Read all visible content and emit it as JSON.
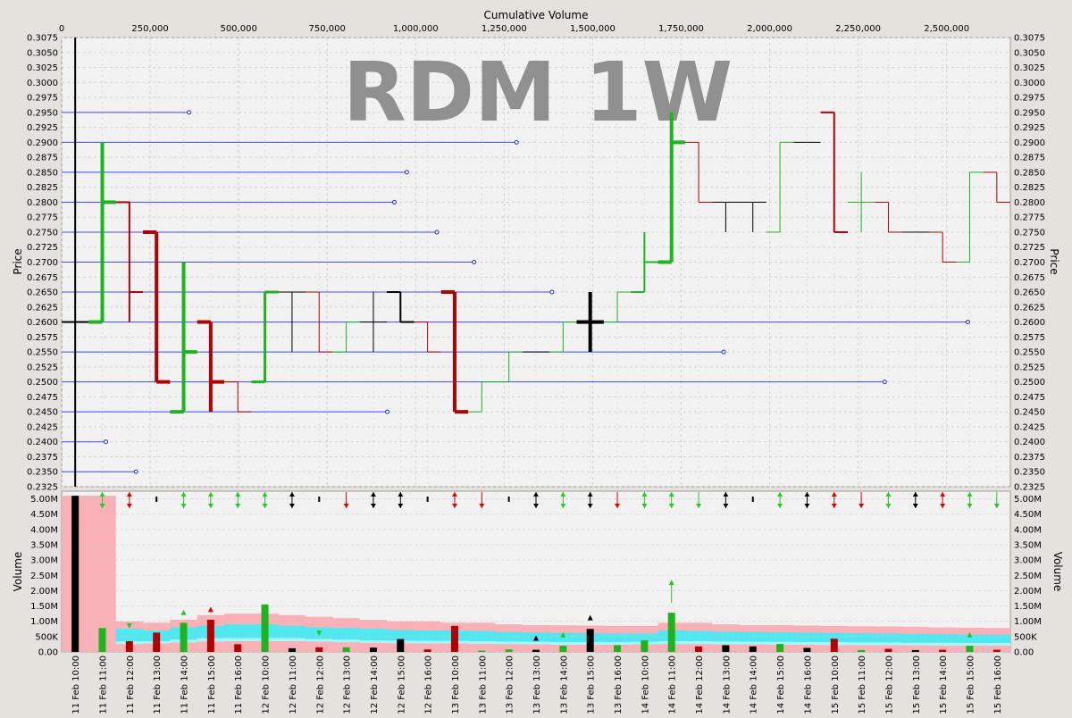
{
  "chart_data": [
    {
      "type": "bar",
      "subtype": "ohlc-with-volume-at-price",
      "title": "RDM 1W",
      "top_axis_label": "Cumulative Volume",
      "ylabel": "Price",
      "ylim": [
        0.2325,
        0.3075
      ],
      "price_ticks": [
        "0.2325",
        "0.2350",
        "0.2375",
        "0.2400",
        "0.2425",
        "0.2450",
        "0.2475",
        "0.2500",
        "0.2525",
        "0.2550",
        "0.2575",
        "0.2600",
        "0.2625",
        "0.2650",
        "0.2675",
        "0.2700",
        "0.2725",
        "0.2750",
        "0.2775",
        "0.2800",
        "0.2825",
        "0.2850",
        "0.2875",
        "0.2900",
        "0.2925",
        "0.2950",
        "0.2975",
        "0.3000",
        "0.3025",
        "0.3050",
        "0.3075"
      ],
      "cum_volume_ticks": [
        "0",
        "250,000",
        "500,000",
        "750,000",
        "1,000,000",
        "1,250,000",
        "1,500,000",
        "1,750,000",
        "2,000,000",
        "2,250,000",
        "2,500,000"
      ],
      "cum_volume_tick_values": [
        0,
        250000,
        500000,
        750000,
        1000000,
        1250000,
        1500000,
        1750000,
        2000000,
        2250000,
        2500000
      ],
      "cum_volume_range": [
        0,
        2680000
      ],
      "volume_at_price": [
        {
          "price": 0.295,
          "volume": 360000
        },
        {
          "price": 0.29,
          "volume": 1285000
        },
        {
          "price": 0.285,
          "volume": 975000
        },
        {
          "price": 0.28,
          "volume": 940000
        },
        {
          "price": 0.275,
          "volume": 1060000
        },
        {
          "price": 0.27,
          "volume": 1165000
        },
        {
          "price": 0.265,
          "volume": 1385000
        },
        {
          "price": 0.26,
          "volume": 2560000
        },
        {
          "price": 0.255,
          "volume": 1870000
        },
        {
          "price": 0.25,
          "volume": 2325000
        },
        {
          "price": 0.245,
          "volume": 920000
        },
        {
          "price": 0.24,
          "volume": 125000
        },
        {
          "price": 0.235,
          "volume": 210000
        }
      ],
      "bars": [
        {
          "label": "11 Feb 10:00",
          "open": 0.26,
          "high": 0.3075,
          "low": 0.2325,
          "close": 0.26,
          "color": "#000000",
          "volume": 5100000
        },
        {
          "label": "11 Feb 11:00",
          "open": 0.26,
          "high": 0.29,
          "low": 0.26,
          "close": 0.28,
          "color": "#1fb31f",
          "volume": 780000
        },
        {
          "label": "11 Feb 12:00",
          "open": 0.28,
          "high": 0.28,
          "low": 0.26,
          "close": 0.265,
          "color": "#b30000",
          "volume": 350000
        },
        {
          "label": "11 Feb 13:00",
          "open": 0.275,
          "high": 0.275,
          "low": 0.25,
          "close": 0.25,
          "color": "#b30000",
          "volume": 630000
        },
        {
          "label": "11 Feb 14:00",
          "open": 0.245,
          "high": 0.27,
          "low": 0.245,
          "close": 0.255,
          "color": "#1fb31f",
          "volume": 950000
        },
        {
          "label": "11 Feb 15:00",
          "open": 0.26,
          "high": 0.26,
          "low": 0.245,
          "close": 0.25,
          "color": "#b30000",
          "volume": 1050000
        },
        {
          "label": "11 Feb 16:00",
          "open": 0.25,
          "high": 0.25,
          "low": 0.245,
          "close": 0.245,
          "color": "#b30000",
          "volume": 250000
        },
        {
          "label": "12 Feb 10:00",
          "open": 0.25,
          "high": 0.265,
          "low": 0.25,
          "close": 0.265,
          "color": "#1fb31f",
          "volume": 1550000
        },
        {
          "label": "12 Feb 11:00",
          "open": 0.265,
          "high": 0.265,
          "low": 0.255,
          "close": 0.265,
          "color": "#000000",
          "volume": 120000
        },
        {
          "label": "12 Feb 12:00",
          "open": 0.265,
          "high": 0.265,
          "low": 0.255,
          "close": 0.255,
          "color": "#b30000",
          "volume": 150000
        },
        {
          "label": "12 Feb 13:00",
          "open": 0.255,
          "high": 0.26,
          "low": 0.255,
          "close": 0.26,
          "color": "#1fb31f",
          "volume": 150000
        },
        {
          "label": "12 Feb 14:00",
          "open": 0.26,
          "high": 0.265,
          "low": 0.255,
          "close": 0.26,
          "color": "#000000",
          "volume": 140000
        },
        {
          "label": "12 Feb 15:00",
          "open": 0.265,
          "high": 0.265,
          "low": 0.26,
          "close": 0.26,
          "color": "#000000",
          "volume": 420000
        },
        {
          "label": "12 Feb 16:00",
          "open": 0.26,
          "high": 0.26,
          "low": 0.255,
          "close": 0.255,
          "color": "#b30000",
          "volume": 80000
        },
        {
          "label": "13 Feb 10:00",
          "open": 0.265,
          "high": 0.265,
          "low": 0.245,
          "close": 0.245,
          "color": "#b30000",
          "volume": 850000
        },
        {
          "label": "13 Feb 11:00",
          "open": 0.245,
          "high": 0.25,
          "low": 0.245,
          "close": 0.25,
          "color": "#1fb31f",
          "volume": 40000
        },
        {
          "label": "13 Feb 12:00",
          "open": 0.25,
          "high": 0.255,
          "low": 0.25,
          "close": 0.255,
          "color": "#1fb31f",
          "volume": 80000
        },
        {
          "label": "13 Feb 13:00",
          "open": 0.255,
          "high": 0.255,
          "low": 0.255,
          "close": 0.255,
          "color": "#000000",
          "volume": 70000
        },
        {
          "label": "13 Feb 14:00",
          "open": 0.255,
          "high": 0.26,
          "low": 0.255,
          "close": 0.26,
          "color": "#1fb31f",
          "volume": 200000
        },
        {
          "label": "13 Feb 15:00",
          "open": 0.26,
          "high": 0.265,
          "low": 0.255,
          "close": 0.26,
          "color": "#000000",
          "volume": 750000
        },
        {
          "label": "13 Feb 16:00",
          "open": 0.26,
          "high": 0.265,
          "low": 0.26,
          "close": 0.265,
          "color": "#1fb31f",
          "volume": 220000
        },
        {
          "label": "14 Feb 10:00",
          "open": 0.265,
          "high": 0.275,
          "low": 0.265,
          "close": 0.27,
          "color": "#1fb31f",
          "volume": 380000
        },
        {
          "label": "14 Feb 11:00",
          "open": 0.27,
          "high": 0.295,
          "low": 0.27,
          "close": 0.29,
          "color": "#1fb31f",
          "volume": 1280000
        },
        {
          "label": "14 Feb 12:00",
          "open": 0.29,
          "high": 0.29,
          "low": 0.28,
          "close": 0.28,
          "color": "#b30000",
          "volume": 180000
        },
        {
          "label": "14 Feb 13:00",
          "open": 0.28,
          "high": 0.28,
          "low": 0.275,
          "close": 0.28,
          "color": "#000000",
          "volume": 220000
        },
        {
          "label": "14 Feb 14:00",
          "open": 0.28,
          "high": 0.28,
          "low": 0.275,
          "close": 0.28,
          "color": "#000000",
          "volume": 180000
        },
        {
          "label": "14 Feb 15:00",
          "open": 0.275,
          "high": 0.29,
          "low": 0.275,
          "close": 0.29,
          "color": "#1fb31f",
          "volume": 260000
        },
        {
          "label": "14 Feb 16:00",
          "open": 0.29,
          "high": 0.29,
          "low": 0.29,
          "close": 0.29,
          "color": "#000000",
          "volume": 130000
        },
        {
          "label": "15 Feb 10:00",
          "open": 0.295,
          "high": 0.295,
          "low": 0.275,
          "close": 0.275,
          "color": "#b30000",
          "volume": 430000
        },
        {
          "label": "15 Feb 11:00",
          "open": 0.28,
          "high": 0.285,
          "low": 0.275,
          "close": 0.28,
          "color": "#1fb31f",
          "volume": 60000
        },
        {
          "label": "15 Feb 12:00",
          "open": 0.28,
          "high": 0.28,
          "low": 0.275,
          "close": 0.275,
          "color": "#b30000",
          "volume": 100000
        },
        {
          "label": "15 Feb 13:00",
          "open": 0.275,
          "high": 0.275,
          "low": 0.275,
          "close": 0.275,
          "color": "#000000",
          "volume": 60000
        },
        {
          "label": "15 Feb 14:00",
          "open": 0.275,
          "high": 0.275,
          "low": 0.27,
          "close": 0.27,
          "color": "#b30000",
          "volume": 70000
        },
        {
          "label": "15 Feb 15:00",
          "open": 0.27,
          "high": 0.285,
          "low": 0.27,
          "close": 0.285,
          "color": "#1fb31f",
          "volume": 200000
        },
        {
          "label": "15 Feb 16:00",
          "open": 0.285,
          "high": 0.285,
          "low": 0.28,
          "close": 0.28,
          "color": "#b30000",
          "volume": 70000
        }
      ]
    },
    {
      "type": "bar",
      "subtype": "volume",
      "ylabel": "Volume",
      "ylim": [
        0,
        5250000
      ],
      "volume_ticks": [
        "0.00",
        "500K",
        "1.00M",
        "1.50M",
        "2.00M",
        "2.50M",
        "3.00M",
        "3.50M",
        "4.00M",
        "4.50M",
        "5.00M"
      ],
      "left_volume_ticks": [
        "0.00",
        "500K",
        "1.00M",
        "1.50M",
        "2.00M",
        "2.50M",
        "3.00M",
        "3.50M",
        "4.00M",
        "4.50M",
        "5.00M"
      ],
      "volume_tick_values": [
        0,
        500000,
        1000000,
        1500000,
        2000000,
        2500000,
        3000000,
        3500000,
        4000000,
        4500000,
        5000000
      ],
      "x_tick_labels": [
        "11 Feb 10:00",
        "11 Feb 11:00",
        "11 Feb 12:00",
        "11 Feb 13:00",
        "11 Feb 14:00",
        "11 Feb 15:00",
        "11 Feb 16:00",
        "12 Feb 10:00",
        "12 Feb 11:00",
        "12 Feb 12:00",
        "12 Feb 13:00",
        "12 Feb 14:00",
        "12 Feb 15:00",
        "12 Feb 16:00",
        "13 Feb 10:00",
        "13 Feb 11:00",
        "13 Feb 12:00",
        "13 Feb 13:00",
        "13 Feb 14:00",
        "13 Feb 15:00",
        "13 Feb 16:00",
        "14 Feb 10:00",
        "14 Feb 11:00",
        "14 Feb 12:00",
        "14 Feb 13:00",
        "14 Feb 14:00",
        "14 Feb 15:00",
        "14 Feb 16:00",
        "15 Feb 10:00",
        "15 Feb 11:00",
        "15 Feb 12:00",
        "15 Feb 13:00",
        "15 Feb 14:00",
        "15 Feb 15:00",
        "15 Feb 16:00"
      ],
      "band_upper": [
        5100000,
        5100000,
        1000000,
        950000,
        1050000,
        1200000,
        1250000,
        1250000,
        1200000,
        1150000,
        1100000,
        1050000,
        1000000,
        1000000,
        950000,
        950000,
        900000,
        880000,
        870000,
        860000,
        850000,
        850000,
        950000,
        950000,
        900000,
        880000,
        880000,
        860000,
        850000,
        840000,
        830000,
        820000,
        800000,
        790000,
        780000
      ],
      "band_cyan_high": [
        0,
        0,
        750000,
        700000,
        800000,
        850000,
        900000,
        900000,
        850000,
        800000,
        780000,
        750000,
        720000,
        700000,
        700000,
        680000,
        650000,
        630000,
        620000,
        610000,
        600000,
        600000,
        700000,
        680000,
        660000,
        650000,
        640000,
        630000,
        620000,
        610000,
        600000,
        590000,
        580000,
        570000,
        560000
      ],
      "band_cyan_low": [
        0,
        0,
        350000,
        350000,
        400000,
        450000,
        450000,
        450000,
        450000,
        420000,
        400000,
        380000,
        370000,
        360000,
        360000,
        350000,
        340000,
        330000,
        320000,
        320000,
        320000,
        330000,
        350000,
        350000,
        340000,
        330000,
        330000,
        320000,
        320000,
        310000,
        310000,
        300000,
        300000,
        290000,
        290000
      ],
      "band_lower": [
        0,
        0,
        250000,
        270000,
        300000,
        330000,
        350000,
        350000,
        350000,
        330000,
        310000,
        290000,
        280000,
        270000,
        270000,
        260000,
        250000,
        240000,
        230000,
        230000,
        230000,
        240000,
        250000,
        250000,
        240000,
        240000,
        230000,
        230000,
        220000,
        220000,
        210000,
        210000,
        200000,
        200000,
        200000
      ],
      "top_arrows": [
        "",
        "both-green",
        "both-red",
        "tick-black",
        "both-green",
        "both-green",
        "both-green",
        "both-green",
        "both-black",
        "tick-black",
        "down-red",
        "both-black",
        "both-black",
        "tick-black",
        "both-red",
        "down-red",
        "tick-black",
        "both-black",
        "both-green",
        "both-black",
        "down-red",
        "both-green",
        "both-green",
        "down-green",
        "both-black",
        "tick-black",
        "both-green",
        "both-black",
        "both-red",
        "down-red",
        "both-green",
        "both-black",
        "both-red",
        "both-green",
        "down-green"
      ],
      "signals": [
        {
          "index": 2,
          "dir": "down",
          "color": "green",
          "value": 820000
        },
        {
          "index": 4,
          "dir": "up",
          "color": "green",
          "value": 1320000
        },
        {
          "index": 5,
          "dir": "up",
          "color": "red",
          "value": 1420000
        },
        {
          "index": 9,
          "dir": "down",
          "color": "green",
          "value": 580000
        },
        {
          "index": 17,
          "dir": "up",
          "color": "black",
          "value": 480000
        },
        {
          "index": 18,
          "dir": "up",
          "color": "green",
          "value": 590000
        },
        {
          "index": 19,
          "dir": "up",
          "color": "black",
          "value": 1150000
        },
        {
          "index": 22,
          "dir": "up",
          "color": "green",
          "value": 2300000
        },
        {
          "index": 33,
          "dir": "up",
          "color": "green",
          "value": 590000
        }
      ]
    }
  ]
}
